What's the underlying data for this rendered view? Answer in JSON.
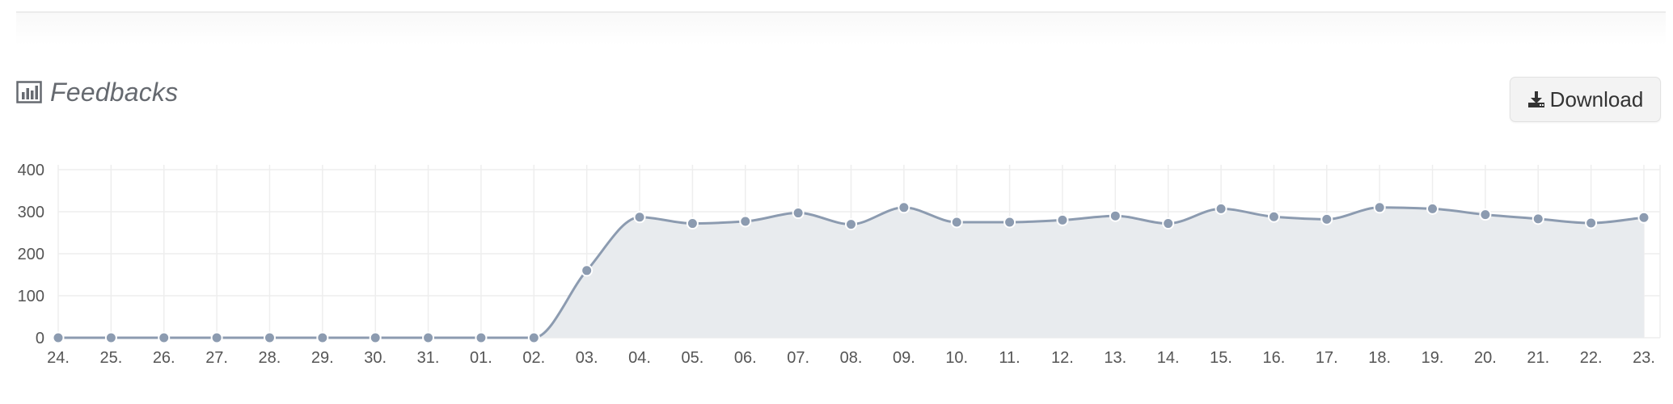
{
  "header": {
    "title": "Feedbacks",
    "title_icon": "bar-chart-icon"
  },
  "toolbar": {
    "download_label": "Download",
    "download_icon": "download-icon"
  },
  "colors": {
    "line": "#8c9bb0",
    "area": "#e8ebee",
    "point": "#8c9bb0",
    "grid": "#eeeeee",
    "text": "#555555"
  },
  "chart_data": {
    "type": "area",
    "categories": [
      "24.",
      "25.",
      "26.",
      "27.",
      "28.",
      "29.",
      "30.",
      "31.",
      "01.",
      "02.",
      "03.",
      "04.",
      "05.",
      "06.",
      "07.",
      "08.",
      "09.",
      "10.",
      "11.",
      "12.",
      "13.",
      "14.",
      "15.",
      "16.",
      "17.",
      "18.",
      "19.",
      "20.",
      "21.",
      "22.",
      "23."
    ],
    "values": [
      0,
      0,
      0,
      0,
      0,
      0,
      0,
      0,
      0,
      0,
      160,
      287,
      272,
      277,
      297,
      270,
      310,
      275,
      275,
      280,
      290,
      272,
      307,
      288,
      282,
      310,
      307,
      293,
      283,
      273,
      286
    ],
    "y_ticks": [
      0,
      100,
      200,
      300,
      400
    ],
    "ylim": [
      0,
      400
    ],
    "grid": true,
    "legend": "none",
    "smooth": true
  }
}
